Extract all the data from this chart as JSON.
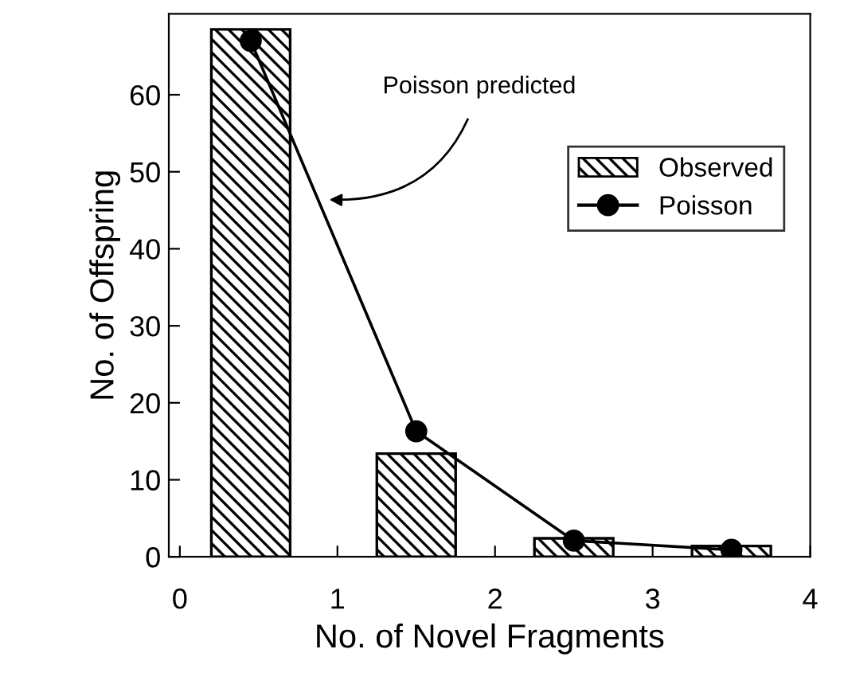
{
  "chart_data": {
    "type": "bar",
    "xlabel": "No. of Novel Fragments",
    "ylabel": "No. of Offspring",
    "x": [
      0.45,
      1.5,
      2.5,
      3.5
    ],
    "series": [
      {
        "name": "Observed",
        "color": "#000000",
        "values": [
          68.5,
          13.4,
          2.4,
          1.4
        ]
      },
      {
        "name": "Poisson",
        "type": "line",
        "color": "#000000",
        "marker": "circle",
        "values": [
          67,
          16.3,
          2.1,
          0.9
        ]
      }
    ],
    "annotations": [
      {
        "text": "Poisson predicted",
        "x": 0.92,
        "y": 46.4
      }
    ],
    "xlim": [
      -0.07,
      4
    ],
    "xticks": [
      0,
      1,
      2,
      3,
      4
    ],
    "ylim": [
      0,
      70.5
    ],
    "yticks": [
      0,
      10,
      20,
      30,
      40,
      50,
      60
    ],
    "grid": false,
    "legend": "top right"
  }
}
